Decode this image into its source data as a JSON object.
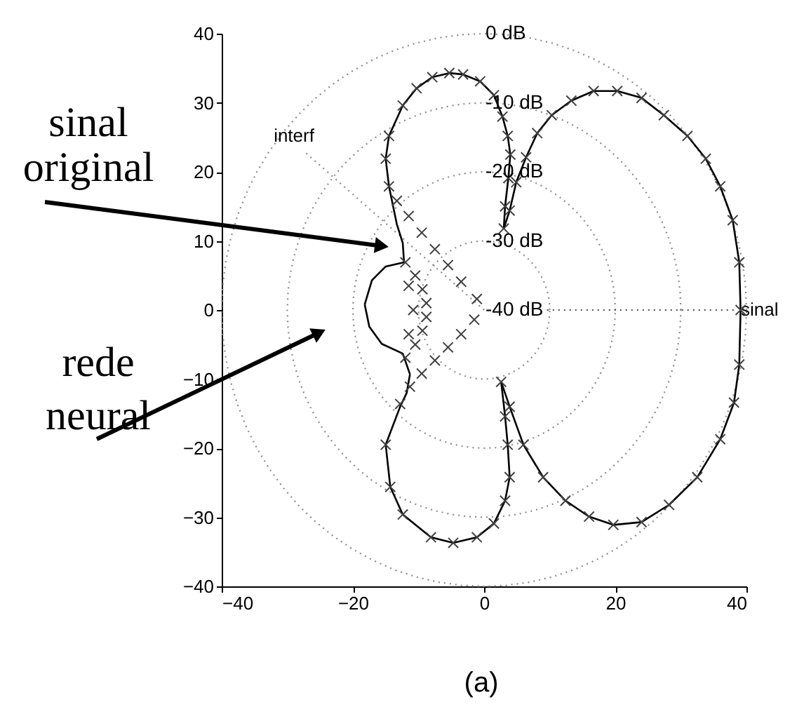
{
  "chart_data": {
    "type": "line",
    "xlim": [
      -40,
      40
    ],
    "ylim": [
      -40,
      40
    ],
    "xticks": [
      -40,
      -20,
      0,
      20,
      40
    ],
    "yticks": [
      -40,
      -30,
      -20,
      -10,
      0,
      10,
      20,
      30,
      40
    ],
    "annotations": [
      "0 dB",
      "-10 dB",
      "-20 dB",
      "-30 dB",
      "-40 dB",
      "sinal original",
      "rede neural",
      "(a)"
    ],
    "series": [
      {
        "name": "sinal",
        "color": "#4d4d4d",
        "line_style": "dotted",
        "x": [
          9.6,
          38.5
        ],
        "values": [
          0,
          0
        ]
      },
      {
        "name": "interf",
        "color": "#8c8c8c",
        "line_style": "dotted",
        "x": [
          0,
          -27.6
        ],
        "values": [
          0,
          23.1
        ]
      },
      {
        "color": "#000000",
        "line_style": "solid",
        "x": [
          39.1,
          38.9,
          37.9,
          36.0,
          33.8,
          31.0,
          27.4,
          24.0,
          20.3,
          16.7,
          13.3,
          10.3,
          8.1,
          6.4,
          4.9,
          3.9,
          3.0
        ],
        "values": [
          0,
          6.9,
          13.0,
          17.9,
          21.9,
          25.2,
          28.2,
          30.7,
          31.7,
          31.7,
          30.3,
          28.2,
          25.6,
          22.1,
          18.5,
          14.4,
          11.8
        ]
      },
      {
        "color": "#000000",
        "line_style": "solid",
        "x": [
          3.0,
          3.2,
          3.7,
          4.0
        ],
        "values": [
          11.8,
          15.0,
          19.1,
          22.5
        ]
      },
      {
        "color": "#000000",
        "line_style": "solid",
        "x": [
          4.0,
          3.6,
          2.8,
          1.5,
          -0.6,
          -3.2,
          -5.3,
          -7.9,
          -10.3,
          -12.4,
          -14.5,
          -15.0
        ],
        "values": [
          22.5,
          25.2,
          28.0,
          31.1,
          33.1,
          34.1,
          34.3,
          33.7,
          32.1,
          29.6,
          25.2,
          21.9
        ]
      },
      {
        "color": "#000000",
        "line_style": "solid",
        "x": [
          -15.0,
          -14.5,
          -13.3,
          -12.4,
          -12.2
        ],
        "values": [
          21.9,
          17.9,
          12.4,
          9.7,
          6.9
        ]
      },
      {
        "color": "#000000",
        "line_style": "solid",
        "x": [
          -12.2,
          -15.0,
          -17.1,
          -18.2
        ],
        "values": [
          6.9,
          6.3,
          4.3,
          0.8
        ]
      },
      {
        "color": "#000000",
        "line_style": "solid",
        "x": [
          -18.2,
          -17.5,
          -15.6,
          -12.4,
          -11.3
        ],
        "values": [
          0.8,
          -2.4,
          -4.9,
          -6.3,
          -9.3
        ]
      },
      {
        "color": "#000000",
        "line_style": "solid",
        "x": [
          -11.3,
          -11.8,
          -12.8,
          -15.0
        ],
        "values": [
          -9.3,
          -12.0,
          -14.0,
          -19.5
        ]
      },
      {
        "color": "#000000",
        "line_style": "solid",
        "x": [
          -15.0,
          -14.3,
          -12.4,
          -8.1,
          -4.7,
          -1.1,
          1.5,
          3.2,
          3.9
        ],
        "values": [
          -19.5,
          -25.6,
          -29.6,
          -32.9,
          -33.7,
          -32.9,
          -30.9,
          -27.6,
          -24.2
        ]
      },
      {
        "color": "#000000",
        "line_style": "solid",
        "x": [
          3.9,
          3.6,
          3.2,
          2.6
        ],
        "values": [
          -24.2,
          -19.5,
          -15.4,
          -10.4
        ]
      },
      {
        "color": "#000000",
        "line_style": "solid",
        "x": [
          2.6,
          3.9,
          6.0,
          9.0,
          12.4,
          16.0,
          19.7,
          24.0,
          28.2,
          32.5,
          36.0,
          38.1,
          38.9,
          39.1
        ],
        "values": [
          -10.4,
          -14.0,
          -19.5,
          -24.2,
          -27.6,
          -29.9,
          -31.1,
          -30.7,
          -28.2,
          -24.2,
          -18.7,
          -13.4,
          -7.9,
          0
        ]
      },
      {
        "type": "scatter",
        "color": "#404040",
        "marker": "cross",
        "x": [
          39.1,
          38.9,
          37.9,
          36.0,
          33.8,
          31.0,
          27.4,
          24.0,
          20.3,
          16.7,
          13.3,
          10.3,
          8.1,
          6.4,
          4.9,
          3.9,
          3.0,
          3.2,
          3.7,
          4.0,
          3.6,
          2.8,
          1.5,
          -0.6,
          -3.2,
          -5.3,
          -7.9,
          -10.3,
          -12.4,
          -14.5,
          -15.0,
          -14.5,
          -13.3,
          -11.5,
          -9.5,
          -7.5,
          -5.5,
          -3.5,
          -1.1,
          -12.0,
          -10.5,
          -9.4,
          -8.8,
          -8.8,
          -9.4,
          -10.5,
          -12.0,
          -11.5,
          -10.8,
          -11.5,
          -1.5,
          -3.5,
          -5.5,
          -7.5,
          -9.5,
          -11.3,
          -12.8,
          -15.0,
          -14.3,
          -12.4,
          -8.1,
          -4.7,
          -1.1,
          1.5,
          3.2,
          3.9,
          3.6,
          3.2,
          2.6,
          3.9,
          6.0,
          9.0,
          12.4,
          16.0,
          19.7,
          24.0,
          28.2,
          32.5,
          36.0,
          38.1,
          38.9
        ],
        "values": [
          0,
          6.9,
          13.0,
          17.9,
          21.9,
          25.2,
          28.2,
          30.7,
          31.7,
          31.7,
          30.3,
          28.2,
          25.6,
          22.1,
          18.5,
          14.4,
          11.8,
          15.0,
          19.1,
          22.5,
          25.2,
          28.0,
          31.1,
          33.1,
          34.1,
          34.3,
          33.7,
          32.1,
          29.6,
          25.2,
          21.9,
          17.9,
          15.8,
          13.6,
          11.2,
          8.8,
          6.5,
          4.1,
          1.6,
          6.9,
          5.0,
          3.0,
          1.0,
          -1.0,
          -3.0,
          -5.0,
          -6.9,
          3.5,
          0,
          -3.5,
          -1.4,
          -3.5,
          -5.4,
          -7.3,
          -9.2,
          -11.1,
          -13.6,
          -19.5,
          -25.6,
          -29.6,
          -32.9,
          -33.7,
          -32.9,
          -30.9,
          -27.6,
          -24.2,
          -19.5,
          -15.4,
          -10.4,
          -14.0,
          -19.5,
          -24.2,
          -27.6,
          -29.9,
          -31.1,
          -30.7,
          -28.2,
          -24.2,
          -18.7,
          -13.4,
          -7.9
        ]
      }
    ]
  }
}
